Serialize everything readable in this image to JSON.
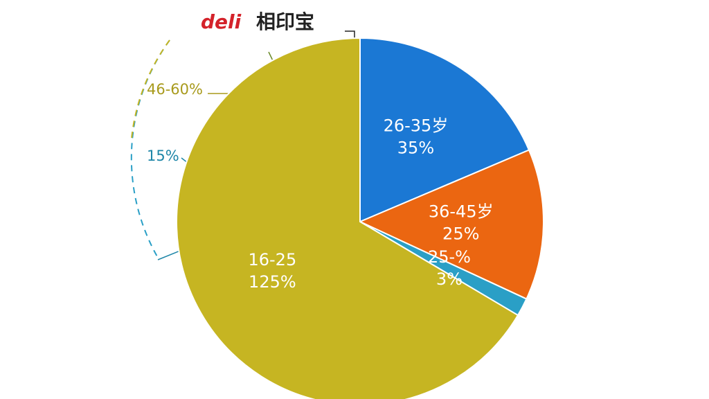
{
  "chart_data": {
    "type": "pie",
    "brand": "deli",
    "brand_sub": "相印宝",
    "categories": [
      "26-35岁",
      "36-45岁",
      "25-%",
      "16-25"
    ],
    "values": [
      35,
      25,
      3,
      125
    ],
    "value_labels": [
      "35%",
      "25%",
      "3%",
      "125%"
    ],
    "colors": [
      "#1b78d4",
      "#eb6611",
      "#2a9fc6",
      "#c6b522"
    ],
    "annotations": [
      {
        "text": "46-60%",
        "color": "#a89a1c"
      },
      {
        "text": "15%",
        "color": "#1e86a8"
      }
    ]
  }
}
